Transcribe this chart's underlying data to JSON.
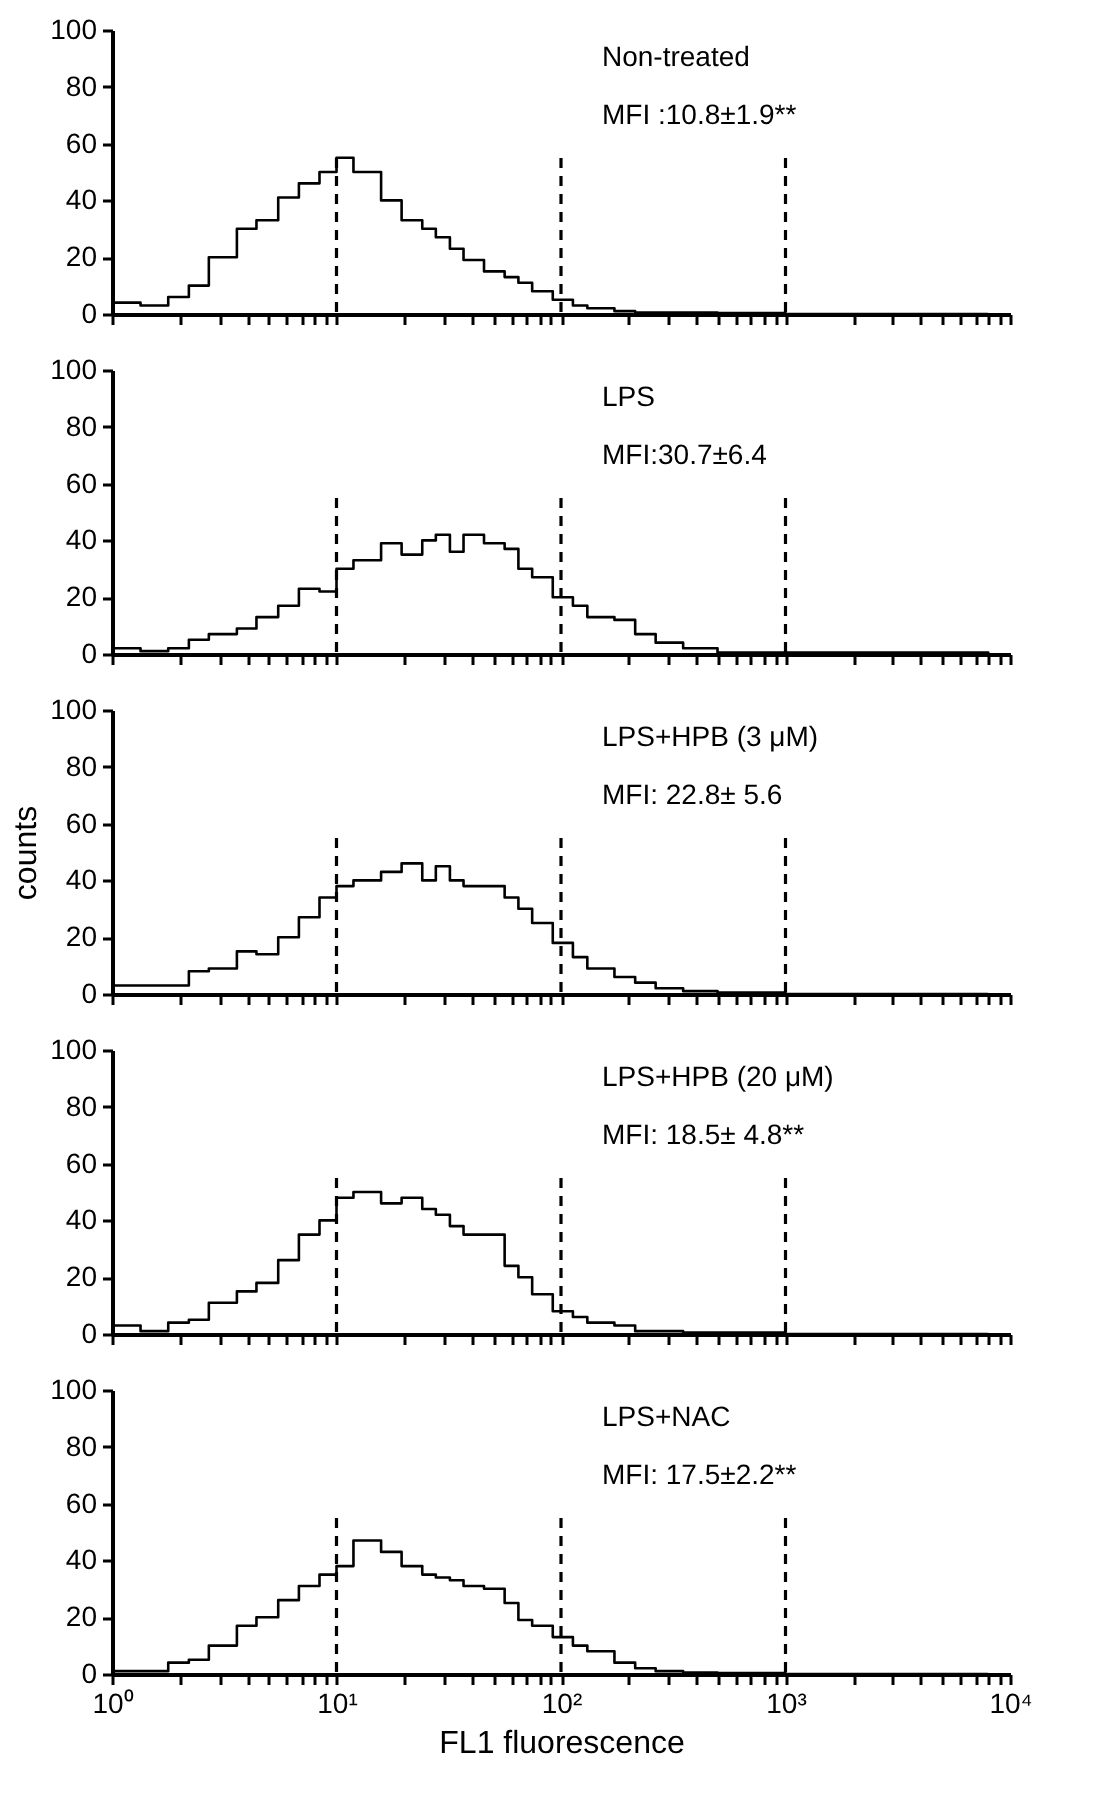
{
  "chart_data": [
    {
      "type": "step",
      "annotations": [
        "Non-treated",
        "MFI :10.8±1.9**"
      ],
      "tick_labels": "y",
      "x": [
        1,
        1.34,
        1.78,
        2.2,
        2.7,
        3.6,
        4.4,
        5.5,
        6.8,
        8.4,
        10,
        11.9,
        15.8,
        19.5,
        24.1,
        27.7,
        32,
        36.8,
        45.4,
        56.1,
        64.6,
        74.4,
        91.9,
        113,
        131,
        173,
        214,
        264,
        350,
        498,
        1000,
        8000
      ],
      "series": [
        {
          "color": "#000000",
          "values": [
            4,
            3,
            6,
            10,
            20,
            30,
            33,
            41,
            46,
            50,
            55,
            50,
            40,
            33,
            30,
            27,
            23,
            19,
            15,
            13,
            11,
            8,
            5,
            3,
            2,
            1,
            0.5,
            0.5,
            0.5,
            0.3,
            0,
            0
          ]
        }
      ],
      "log": "x",
      "xlim": [
        1,
        10000
      ],
      "ylim": [
        0,
        100
      ],
      "yticks": [
        0,
        20,
        40,
        60,
        80,
        100
      ],
      "xticks": [
        {
          "value": 1,
          "label": null
        },
        {
          "value": 2,
          "label": null
        },
        {
          "value": 3,
          "label": null
        },
        {
          "value": 4,
          "label": null
        },
        {
          "value": 5,
          "label": null
        },
        {
          "value": 6,
          "label": null
        },
        {
          "value": 7,
          "label": null
        },
        {
          "value": 8,
          "label": null
        },
        {
          "value": 9,
          "label": null
        },
        {
          "value": 10,
          "label": null
        },
        {
          "value": 20,
          "label": null
        },
        {
          "value": 30,
          "label": null
        },
        {
          "value": 40,
          "label": null
        },
        {
          "value": 50,
          "label": null
        },
        {
          "value": 60,
          "label": null
        },
        {
          "value": 70,
          "label": null
        },
        {
          "value": 80,
          "label": null
        },
        {
          "value": 90,
          "label": null
        },
        {
          "value": 100,
          "label": null
        },
        {
          "value": 200,
          "label": null
        },
        {
          "value": 300,
          "label": null
        },
        {
          "value": 400,
          "label": null
        },
        {
          "value": 500,
          "label": null
        },
        {
          "value": 600,
          "label": null
        },
        {
          "value": 700,
          "label": null
        },
        {
          "value": 800,
          "label": null
        },
        {
          "value": 900,
          "label": null
        },
        {
          "value": 1000,
          "label": null
        },
        {
          "value": 2000,
          "label": null
        },
        {
          "value": 3000,
          "label": null
        },
        {
          "value": 4000,
          "label": null
        },
        {
          "value": 5000,
          "label": null
        },
        {
          "value": 6000,
          "label": null
        },
        {
          "value": 7000,
          "label": null
        },
        {
          "value": 8000,
          "label": null
        },
        {
          "value": 9000,
          "label": null
        },
        {
          "value": 10000,
          "label": null
        }
      ],
      "ref_lines": [
        {
          "axis": "x",
          "value": 10,
          "line_style": "dashed"
        },
        {
          "axis": "x",
          "value": 100,
          "line_style": "dashed"
        },
        {
          "axis": "x",
          "value": 1000,
          "line_style": "dashed"
        }
      ]
    },
    {
      "type": "step",
      "annotations": [
        "LPS",
        "MFI:30.7±6.4"
      ],
      "tick_labels": "y",
      "x": [
        1,
        1.34,
        1.78,
        2.2,
        2.7,
        3.6,
        4.4,
        5.5,
        6.8,
        8.4,
        10,
        11.9,
        15.8,
        19.5,
        24.1,
        27.7,
        32,
        36.8,
        45.4,
        56.1,
        64.6,
        74.4,
        91.9,
        113,
        131,
        173,
        214,
        264,
        350,
        498,
        1000,
        8000
      ],
      "series": [
        {
          "color": "#000000",
          "values": [
            2,
            1,
            2,
            5,
            7,
            9,
            13,
            17,
            23,
            22,
            30,
            33,
            39,
            35,
            40,
            42,
            36,
            42,
            39,
            37,
            30,
            27,
            20,
            17,
            13,
            12,
            7,
            4,
            2,
            0.5,
            0.5,
            0
          ]
        }
      ],
      "log": "x",
      "xlim": [
        1,
        10000
      ],
      "ylim": [
        0,
        100
      ],
      "yticks": [
        0,
        20,
        40,
        60,
        80,
        100
      ],
      "xticks": [
        {
          "value": 1,
          "label": null
        },
        {
          "value": 2,
          "label": null
        },
        {
          "value": 3,
          "label": null
        },
        {
          "value": 4,
          "label": null
        },
        {
          "value": 5,
          "label": null
        },
        {
          "value": 6,
          "label": null
        },
        {
          "value": 7,
          "label": null
        },
        {
          "value": 8,
          "label": null
        },
        {
          "value": 9,
          "label": null
        },
        {
          "value": 10,
          "label": null
        },
        {
          "value": 20,
          "label": null
        },
        {
          "value": 30,
          "label": null
        },
        {
          "value": 40,
          "label": null
        },
        {
          "value": 50,
          "label": null
        },
        {
          "value": 60,
          "label": null
        },
        {
          "value": 70,
          "label": null
        },
        {
          "value": 80,
          "label": null
        },
        {
          "value": 90,
          "label": null
        },
        {
          "value": 100,
          "label": null
        },
        {
          "value": 200,
          "label": null
        },
        {
          "value": 300,
          "label": null
        },
        {
          "value": 400,
          "label": null
        },
        {
          "value": 500,
          "label": null
        },
        {
          "value": 600,
          "label": null
        },
        {
          "value": 700,
          "label": null
        },
        {
          "value": 800,
          "label": null
        },
        {
          "value": 900,
          "label": null
        },
        {
          "value": 1000,
          "label": null
        },
        {
          "value": 2000,
          "label": null
        },
        {
          "value": 3000,
          "label": null
        },
        {
          "value": 4000,
          "label": null
        },
        {
          "value": 5000,
          "label": null
        },
        {
          "value": 6000,
          "label": null
        },
        {
          "value": 7000,
          "label": null
        },
        {
          "value": 8000,
          "label": null
        },
        {
          "value": 9000,
          "label": null
        },
        {
          "value": 10000,
          "label": null
        }
      ],
      "ref_lines": [
        {
          "axis": "x",
          "value": 10,
          "line_style": "dashed"
        },
        {
          "axis": "x",
          "value": 100,
          "line_style": "dashed"
        },
        {
          "axis": "x",
          "value": 1000,
          "line_style": "dashed"
        }
      ]
    },
    {
      "type": "step",
      "annotations": [
        "LPS+HPB (3 μM)",
        "MFI: 22.8± 5.6"
      ],
      "tick_labels": "y",
      "ylabel": "counts",
      "x": [
        1,
        1.34,
        1.78,
        2.2,
        2.7,
        3.6,
        4.4,
        5.5,
        6.8,
        8.4,
        10,
        11.9,
        15.8,
        19.5,
        24.1,
        27.7,
        32,
        36.8,
        45.4,
        56.1,
        64.6,
        74.4,
        91.9,
        113,
        131,
        173,
        214,
        264,
        350,
        498,
        1000,
        8000
      ],
      "series": [
        {
          "color": "#000000",
          "values": [
            3,
            3,
            3,
            8,
            9,
            15,
            14,
            20,
            27,
            34,
            38,
            40,
            43,
            46,
            40,
            45,
            40,
            38,
            38,
            34,
            30,
            25,
            18,
            13,
            9,
            6,
            4,
            2,
            1,
            0.5,
            0,
            0
          ]
        }
      ],
      "log": "x",
      "xlim": [
        1,
        10000
      ],
      "ylim": [
        0,
        100
      ],
      "yticks": [
        0,
        20,
        40,
        60,
        80,
        100
      ],
      "xticks": [
        {
          "value": 1,
          "label": null
        },
        {
          "value": 2,
          "label": null
        },
        {
          "value": 3,
          "label": null
        },
        {
          "value": 4,
          "label": null
        },
        {
          "value": 5,
          "label": null
        },
        {
          "value": 6,
          "label": null
        },
        {
          "value": 7,
          "label": null
        },
        {
          "value": 8,
          "label": null
        },
        {
          "value": 9,
          "label": null
        },
        {
          "value": 10,
          "label": null
        },
        {
          "value": 20,
          "label": null
        },
        {
          "value": 30,
          "label": null
        },
        {
          "value": 40,
          "label": null
        },
        {
          "value": 50,
          "label": null
        },
        {
          "value": 60,
          "label": null
        },
        {
          "value": 70,
          "label": null
        },
        {
          "value": 80,
          "label": null
        },
        {
          "value": 90,
          "label": null
        },
        {
          "value": 100,
          "label": null
        },
        {
          "value": 200,
          "label": null
        },
        {
          "value": 300,
          "label": null
        },
        {
          "value": 400,
          "label": null
        },
        {
          "value": 500,
          "label": null
        },
        {
          "value": 600,
          "label": null
        },
        {
          "value": 700,
          "label": null
        },
        {
          "value": 800,
          "label": null
        },
        {
          "value": 900,
          "label": null
        },
        {
          "value": 1000,
          "label": null
        },
        {
          "value": 2000,
          "label": null
        },
        {
          "value": 3000,
          "label": null
        },
        {
          "value": 4000,
          "label": null
        },
        {
          "value": 5000,
          "label": null
        },
        {
          "value": 6000,
          "label": null
        },
        {
          "value": 7000,
          "label": null
        },
        {
          "value": 8000,
          "label": null
        },
        {
          "value": 9000,
          "label": null
        },
        {
          "value": 10000,
          "label": null
        }
      ],
      "ref_lines": [
        {
          "axis": "x",
          "value": 10,
          "line_style": "dashed"
        },
        {
          "axis": "x",
          "value": 100,
          "line_style": "dashed"
        },
        {
          "axis": "x",
          "value": 1000,
          "line_style": "dashed"
        }
      ]
    },
    {
      "type": "step",
      "annotations": [
        "LPS+HPB (20 μM)",
        "MFI: 18.5± 4.8**"
      ],
      "tick_labels": "y",
      "x": [
        1,
        1.34,
        1.78,
        2.2,
        2.7,
        3.6,
        4.4,
        5.5,
        6.8,
        8.4,
        10,
        11.9,
        15.8,
        19.5,
        24.1,
        27.7,
        32,
        36.8,
        45.4,
        56.1,
        64.6,
        74.4,
        91.9,
        113,
        131,
        173,
        214,
        264,
        350,
        498,
        1000,
        8000
      ],
      "series": [
        {
          "color": "#000000",
          "values": [
            3,
            1,
            4,
            5,
            11,
            15,
            18,
            26,
            35,
            40,
            48,
            50,
            46,
            48,
            44,
            42,
            38,
            35,
            35,
            24,
            20,
            14,
            8,
            6,
            4,
            3,
            1,
            1,
            0.5,
            0.5,
            0,
            0
          ]
        }
      ],
      "log": "x",
      "xlim": [
        1,
        10000
      ],
      "ylim": [
        0,
        100
      ],
      "yticks": [
        0,
        20,
        40,
        60,
        80,
        100
      ],
      "xticks": [
        {
          "value": 1,
          "label": null
        },
        {
          "value": 2,
          "label": null
        },
        {
          "value": 3,
          "label": null
        },
        {
          "value": 4,
          "label": null
        },
        {
          "value": 5,
          "label": null
        },
        {
          "value": 6,
          "label": null
        },
        {
          "value": 7,
          "label": null
        },
        {
          "value": 8,
          "label": null
        },
        {
          "value": 9,
          "label": null
        },
        {
          "value": 10,
          "label": null
        },
        {
          "value": 20,
          "label": null
        },
        {
          "value": 30,
          "label": null
        },
        {
          "value": 40,
          "label": null
        },
        {
          "value": 50,
          "label": null
        },
        {
          "value": 60,
          "label": null
        },
        {
          "value": 70,
          "label": null
        },
        {
          "value": 80,
          "label": null
        },
        {
          "value": 90,
          "label": null
        },
        {
          "value": 100,
          "label": null
        },
        {
          "value": 200,
          "label": null
        },
        {
          "value": 300,
          "label": null
        },
        {
          "value": 400,
          "label": null
        },
        {
          "value": 500,
          "label": null
        },
        {
          "value": 600,
          "label": null
        },
        {
          "value": 700,
          "label": null
        },
        {
          "value": 800,
          "label": null
        },
        {
          "value": 900,
          "label": null
        },
        {
          "value": 1000,
          "label": null
        },
        {
          "value": 2000,
          "label": null
        },
        {
          "value": 3000,
          "label": null
        },
        {
          "value": 4000,
          "label": null
        },
        {
          "value": 5000,
          "label": null
        },
        {
          "value": 6000,
          "label": null
        },
        {
          "value": 7000,
          "label": null
        },
        {
          "value": 8000,
          "label": null
        },
        {
          "value": 9000,
          "label": null
        },
        {
          "value": 10000,
          "label": null
        }
      ],
      "ref_lines": [
        {
          "axis": "x",
          "value": 10,
          "line_style": "dashed"
        },
        {
          "axis": "x",
          "value": 100,
          "line_style": "dashed"
        },
        {
          "axis": "x",
          "value": 1000,
          "line_style": "dashed"
        }
      ]
    },
    {
      "type": "step",
      "annotations": [
        "LPS+NAC",
        "MFI: 17.5±2.2**"
      ],
      "xlabel": "FL1 fluorescence",
      "x": [
        1,
        1.34,
        1.78,
        2.2,
        2.7,
        3.6,
        4.4,
        5.5,
        6.8,
        8.4,
        10,
        11.9,
        15.8,
        19.5,
        24.1,
        27.7,
        32,
        36.8,
        45.4,
        56.1,
        64.6,
        74.4,
        91.9,
        113,
        131,
        173,
        214,
        264,
        350,
        498,
        1000,
        8000
      ],
      "series": [
        {
          "color": "#000000",
          "values": [
            1,
            1,
            4,
            5,
            10,
            17,
            20,
            26,
            31,
            35,
            38,
            47,
            43,
            38,
            35,
            34,
            33,
            31,
            30,
            25,
            19,
            17,
            13,
            10,
            8,
            4,
            2,
            1,
            0.5,
            0.3,
            0,
            0
          ]
        }
      ],
      "log": "x",
      "xlim": [
        1,
        10000
      ],
      "ylim": [
        0,
        100
      ],
      "yticks": [
        0,
        20,
        40,
        60,
        80,
        100
      ],
      "xticks": [
        {
          "value": 1,
          "label": "10⁰"
        },
        {
          "value": 2,
          "label": null
        },
        {
          "value": 3,
          "label": null
        },
        {
          "value": 4,
          "label": null
        },
        {
          "value": 5,
          "label": null
        },
        {
          "value": 6,
          "label": null
        },
        {
          "value": 7,
          "label": null
        },
        {
          "value": 8,
          "label": null
        },
        {
          "value": 9,
          "label": null
        },
        {
          "value": 10,
          "label": "10¹"
        },
        {
          "value": 20,
          "label": null
        },
        {
          "value": 30,
          "label": null
        },
        {
          "value": 40,
          "label": null
        },
        {
          "value": 50,
          "label": null
        },
        {
          "value": 60,
          "label": null
        },
        {
          "value": 70,
          "label": null
        },
        {
          "value": 80,
          "label": null
        },
        {
          "value": 90,
          "label": null
        },
        {
          "value": 100,
          "label": "10²"
        },
        {
          "value": 200,
          "label": null
        },
        {
          "value": 300,
          "label": null
        },
        {
          "value": 400,
          "label": null
        },
        {
          "value": 500,
          "label": null
        },
        {
          "value": 600,
          "label": null
        },
        {
          "value": 700,
          "label": null
        },
        {
          "value": 800,
          "label": null
        },
        {
          "value": 900,
          "label": null
        },
        {
          "value": 1000,
          "label": "10³"
        },
        {
          "value": 2000,
          "label": null
        },
        {
          "value": 3000,
          "label": null
        },
        {
          "value": 4000,
          "label": null
        },
        {
          "value": 5000,
          "label": null
        },
        {
          "value": 6000,
          "label": null
        },
        {
          "value": 7000,
          "label": null
        },
        {
          "value": 8000,
          "label": null
        },
        {
          "value": 9000,
          "label": null
        },
        {
          "value": 10000,
          "label": "10⁴"
        }
      ],
      "ref_lines": [
        {
          "axis": "x",
          "value": 10,
          "line_style": "dashed"
        },
        {
          "axis": "x",
          "value": 100,
          "line_style": "dashed"
        },
        {
          "axis": "x",
          "value": 1000,
          "line_style": "dashed"
        }
      ]
    }
  ]
}
